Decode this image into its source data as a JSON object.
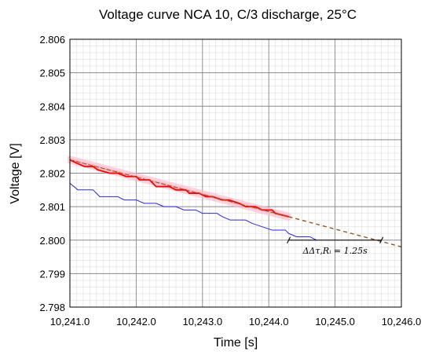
{
  "chart_data": {
    "type": "line",
    "title": "Voltage curve NCA 10, C/3 discharge, 25°C",
    "xlabel": "Time [s]",
    "ylabel": "Voltage [V]",
    "xlim": [
      10241.0,
      10246.0
    ],
    "ylim": [
      2.798,
      2.806
    ],
    "x_ticks": [
      10241.0,
      10242.0,
      10243.0,
      10244.0,
      10245.0,
      10246.0
    ],
    "x_tick_labels": [
      "10,241.0",
      "10,242.0",
      "10,243.0",
      "10,244.0",
      "10,245.0",
      "10,246.0"
    ],
    "y_ticks": [
      2.798,
      2.799,
      2.8,
      2.801,
      2.802,
      2.803,
      2.804,
      2.805,
      2.806
    ],
    "y_tick_labels": [
      "2.798",
      "2.799",
      "2.800",
      "2.801",
      "2.802",
      "2.803",
      "2.804",
      "2.805",
      "2.806"
    ],
    "grid": true,
    "minor_grid": true,
    "series": [
      {
        "color": "#2a2ad8",
        "style": "step",
        "points": [
          [
            10241.0,
            2.8017
          ],
          [
            10241.12,
            2.8015
          ],
          [
            10241.35,
            2.8015
          ],
          [
            10241.45,
            2.8013
          ],
          [
            10241.72,
            2.8013
          ],
          [
            10241.82,
            2.8012
          ],
          [
            10242.0,
            2.8012
          ],
          [
            10242.12,
            2.8011
          ],
          [
            10242.3,
            2.8011
          ],
          [
            10242.42,
            2.801
          ],
          [
            10242.6,
            2.801
          ],
          [
            10242.72,
            2.8009
          ],
          [
            10242.9,
            2.8009
          ],
          [
            10243.0,
            2.8008
          ],
          [
            10243.22,
            2.8008
          ],
          [
            10243.3,
            2.8007
          ],
          [
            10243.42,
            2.8006
          ],
          [
            10243.65,
            2.8006
          ],
          [
            10243.75,
            2.8005
          ],
          [
            10243.9,
            2.8004
          ],
          [
            10244.05,
            2.8003
          ],
          [
            10244.25,
            2.8003
          ],
          [
            10244.3,
            2.8002
          ],
          [
            10244.42,
            2.8001
          ],
          [
            10244.62,
            2.8001
          ],
          [
            10244.72,
            2.8
          ]
        ]
      },
      {
        "color": "#ff0000",
        "style": "step",
        "points": [
          [
            10241.0,
            2.8024
          ],
          [
            10241.1,
            2.8023
          ],
          [
            10241.22,
            2.8022
          ],
          [
            10241.35,
            2.8022
          ],
          [
            10241.42,
            2.8021
          ],
          [
            10241.6,
            2.802
          ],
          [
            10241.72,
            2.802
          ],
          [
            10241.85,
            2.8019
          ],
          [
            10242.0,
            2.8019
          ],
          [
            10242.05,
            2.8018
          ],
          [
            10242.2,
            2.8018
          ],
          [
            10242.3,
            2.8016
          ],
          [
            10242.5,
            2.8016
          ],
          [
            10242.6,
            2.8015
          ],
          [
            10242.75,
            2.8015
          ],
          [
            10242.8,
            2.8014
          ],
          [
            10242.95,
            2.8014
          ],
          [
            10243.05,
            2.8013
          ],
          [
            10243.15,
            2.8013
          ],
          [
            10243.3,
            2.8012
          ],
          [
            10243.4,
            2.8012
          ],
          [
            10243.55,
            2.8011
          ],
          [
            10243.65,
            2.801
          ],
          [
            10243.8,
            2.801
          ],
          [
            10243.9,
            2.8009
          ],
          [
            10244.05,
            2.8009
          ],
          [
            10244.1,
            2.8008
          ],
          [
            10244.3,
            2.8007
          ]
        ]
      },
      {
        "color": "#8b5a2b",
        "style": "solid",
        "points": [
          [
            10241.0,
            2.8024
          ],
          [
            10244.3,
            2.8007
          ]
        ]
      },
      {
        "color": "#8b5a2b",
        "style": "dashed",
        "points": [
          [
            10244.3,
            2.8007
          ],
          [
            10246.0,
            2.7998
          ]
        ]
      }
    ],
    "confidence_band": {
      "color": "#ffb6c8",
      "upper": [
        [
          10241.0,
          2.80245
        ],
        [
          10244.3,
          2.80075
        ]
      ],
      "lower": [
        [
          10241.0,
          2.80235
        ],
        [
          10244.3,
          2.80065
        ]
      ]
    },
    "annotations": [
      {
        "text": "ΔΔτ,Rᵢ = 1.25s",
        "from": [
          10244.3,
          2.8
        ],
        "to": [
          10245.7,
          2.8
        ]
      }
    ]
  }
}
